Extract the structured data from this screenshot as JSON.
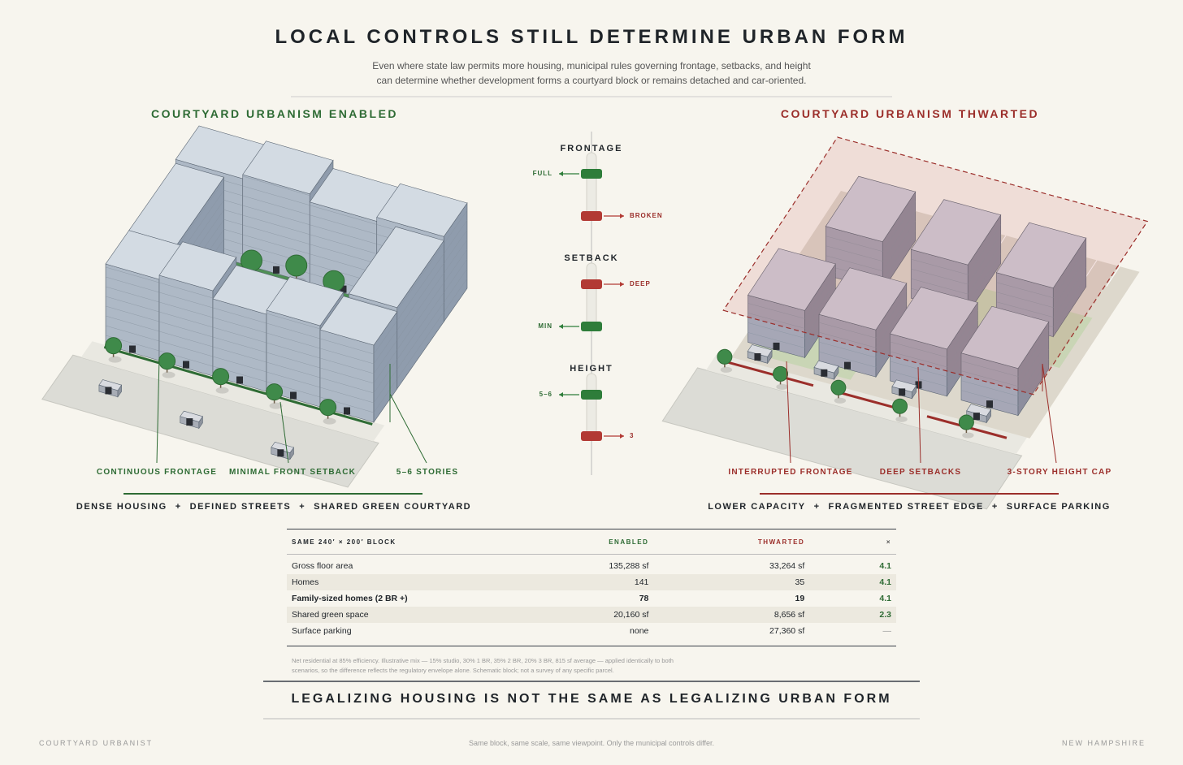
{
  "header": {
    "title": "LOCAL CONTROLS STILL DETERMINE URBAN FORM",
    "subtitle": [
      "Even where state law permits more housing, municipal rules governing frontage, setbacks, and height",
      "can determine whether development forms a courtyard block or remains detached and car-oriented."
    ]
  },
  "enabled": {
    "heading": "COURTYARD URBANISM ENABLED",
    "callouts": [
      "CONTINUOUS FRONTAGE",
      "MINIMAL FRONT SETBACK",
      "5–6 STORIES"
    ],
    "summary": [
      "DENSE HOUSING",
      "DEFINED STREETS",
      "SHARED GREEN COURTYARD"
    ],
    "separator": "+"
  },
  "controls": [
    {
      "label": "FRONTAGE",
      "enabled": "FULL",
      "thwarted": "BROKEN"
    },
    {
      "label": "SETBACK",
      "enabled": "MIN",
      "thwarted": "DEEP"
    },
    {
      "label": "HEIGHT",
      "enabled": "5–6",
      "thwarted": "3"
    }
  ],
  "thwarted": {
    "heading": "COURTYARD URBANISM THWARTED",
    "callouts": [
      "INTERRUPTED FRONTAGE",
      "DEEP SETBACKS",
      "3-STORY HEIGHT CAP"
    ],
    "summary": [
      "LOWER CAPACITY",
      "FRAGMENTED STREET EDGE",
      "SURFACE PARKING"
    ],
    "separator": "+"
  },
  "table": {
    "columns": [
      "SAME 240′ × 200′ BLOCK",
      "ENABLED",
      "THWARTED",
      "×"
    ],
    "rows": [
      [
        "Gross floor area",
        "135,288 sf",
        "33,264 sf",
        "4.1"
      ],
      [
        "Homes",
        "141",
        "35",
        "4.1"
      ],
      [
        "Family-sized homes (2 BR +)",
        "78",
        "19",
        "4.1"
      ],
      [
        "Shared green space",
        "20,160 sf",
        "8,656 sf",
        "2.3"
      ],
      [
        "Surface parking",
        "none",
        "27,360 sf",
        "—"
      ]
    ],
    "note": [
      "Net residential at 85% efficiency. Illustrative mix — 15% studio, 30% 1 BR, 35% 2 BR, 20% 3 BR, 815 sf average — applied identically to both",
      "scenarios, so the difference reflects the regulatory envelope alone. Schematic block; not a survey of any specific parcel."
    ]
  },
  "banner": "LEGALIZING HOUSING IS NOT THE SAME AS LEGALIZING URBAN FORM",
  "footer": {
    "left": "COURTYARD URBANIST",
    "center": "Same block, same scale, same viewpoint. Only the municipal controls differ.",
    "right": "NEW HAMPSHIRE"
  }
}
